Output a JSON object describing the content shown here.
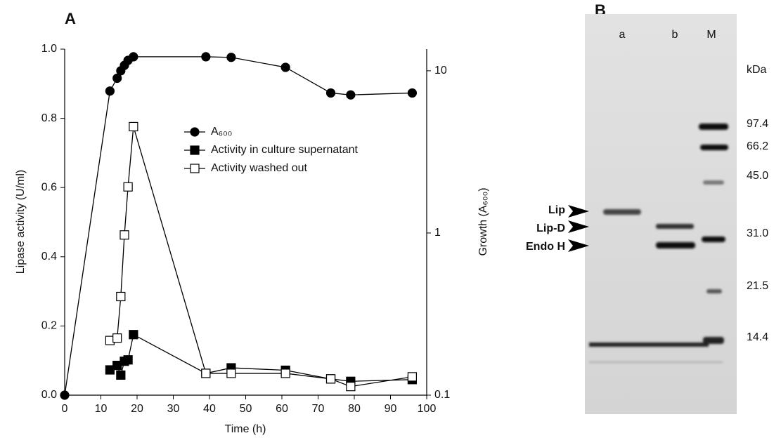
{
  "chart_data": {
    "type": "line",
    "panel_label": "A",
    "xlabel": "Time (h)",
    "ylabel": "Lipase activity (U/ml)",
    "y2label": "Growth (A₆₀₀)",
    "xlim": [
      0,
      100
    ],
    "xticks": [
      0,
      10,
      20,
      30,
      40,
      50,
      60,
      70,
      80,
      90,
      100
    ],
    "ylim": [
      0,
      1
    ],
    "yticks": [
      {
        "value": 0,
        "label": "0.0"
      },
      0.2,
      0.4,
      0.6,
      0.8,
      {
        "value": 1,
        "label": "1.0"
      }
    ],
    "y2lim": [
      0.1,
      13.6
    ],
    "y2ticks": [
      0.1,
      1,
      10
    ],
    "y2scale": "log",
    "series": [
      {
        "name": "A₆₀₀",
        "color": "#000000",
        "marker": "circle",
        "filled": true,
        "axis": "y2",
        "x": [
          0,
          12.5,
          14.5,
          15.5,
          16.5,
          17.5,
          19,
          39,
          46,
          61,
          73.5,
          79,
          96
        ],
        "values": [
          0.1,
          7.5,
          9,
          10,
          10.8,
          11.6,
          12.2,
          12.2,
          12.1,
          10.5,
          7.3,
          7.1,
          7.3
        ]
      },
      {
        "name": "Activity in culture supernatant",
        "color": "#000000",
        "marker": "square",
        "filled": true,
        "x": [
          12.5,
          14.5,
          15.5,
          16.5,
          17.5,
          19,
          39,
          46,
          61,
          73.5,
          79,
          96
        ],
        "values": [
          0.073,
          0.086,
          0.058,
          0.098,
          0.102,
          0.175,
          0.063,
          0.079,
          0.072,
          0.047,
          0.04,
          0.045
        ]
      },
      {
        "name": "Activity washed out",
        "color": "#000000",
        "marker": "square",
        "filled": false,
        "x": [
          12.5,
          14.5,
          15.5,
          16.5,
          17.5,
          19,
          39,
          46,
          61,
          73.5,
          79,
          96
        ],
        "values": [
          0.158,
          0.165,
          0.285,
          0.463,
          0.602,
          0.776,
          0.063,
          0.063,
          0.063,
          0.047,
          0.025,
          0.053
        ]
      }
    ]
  },
  "gel": {
    "panel_label": "B",
    "lanes": [
      "a",
      "b",
      "M"
    ],
    "unit": "kDa",
    "markers": [
      "97.4",
      "66.2",
      "45.0",
      "31.0",
      "21.5",
      "14.4"
    ],
    "arrows": [
      "Lip",
      "Lip-D",
      "Endo H"
    ]
  }
}
